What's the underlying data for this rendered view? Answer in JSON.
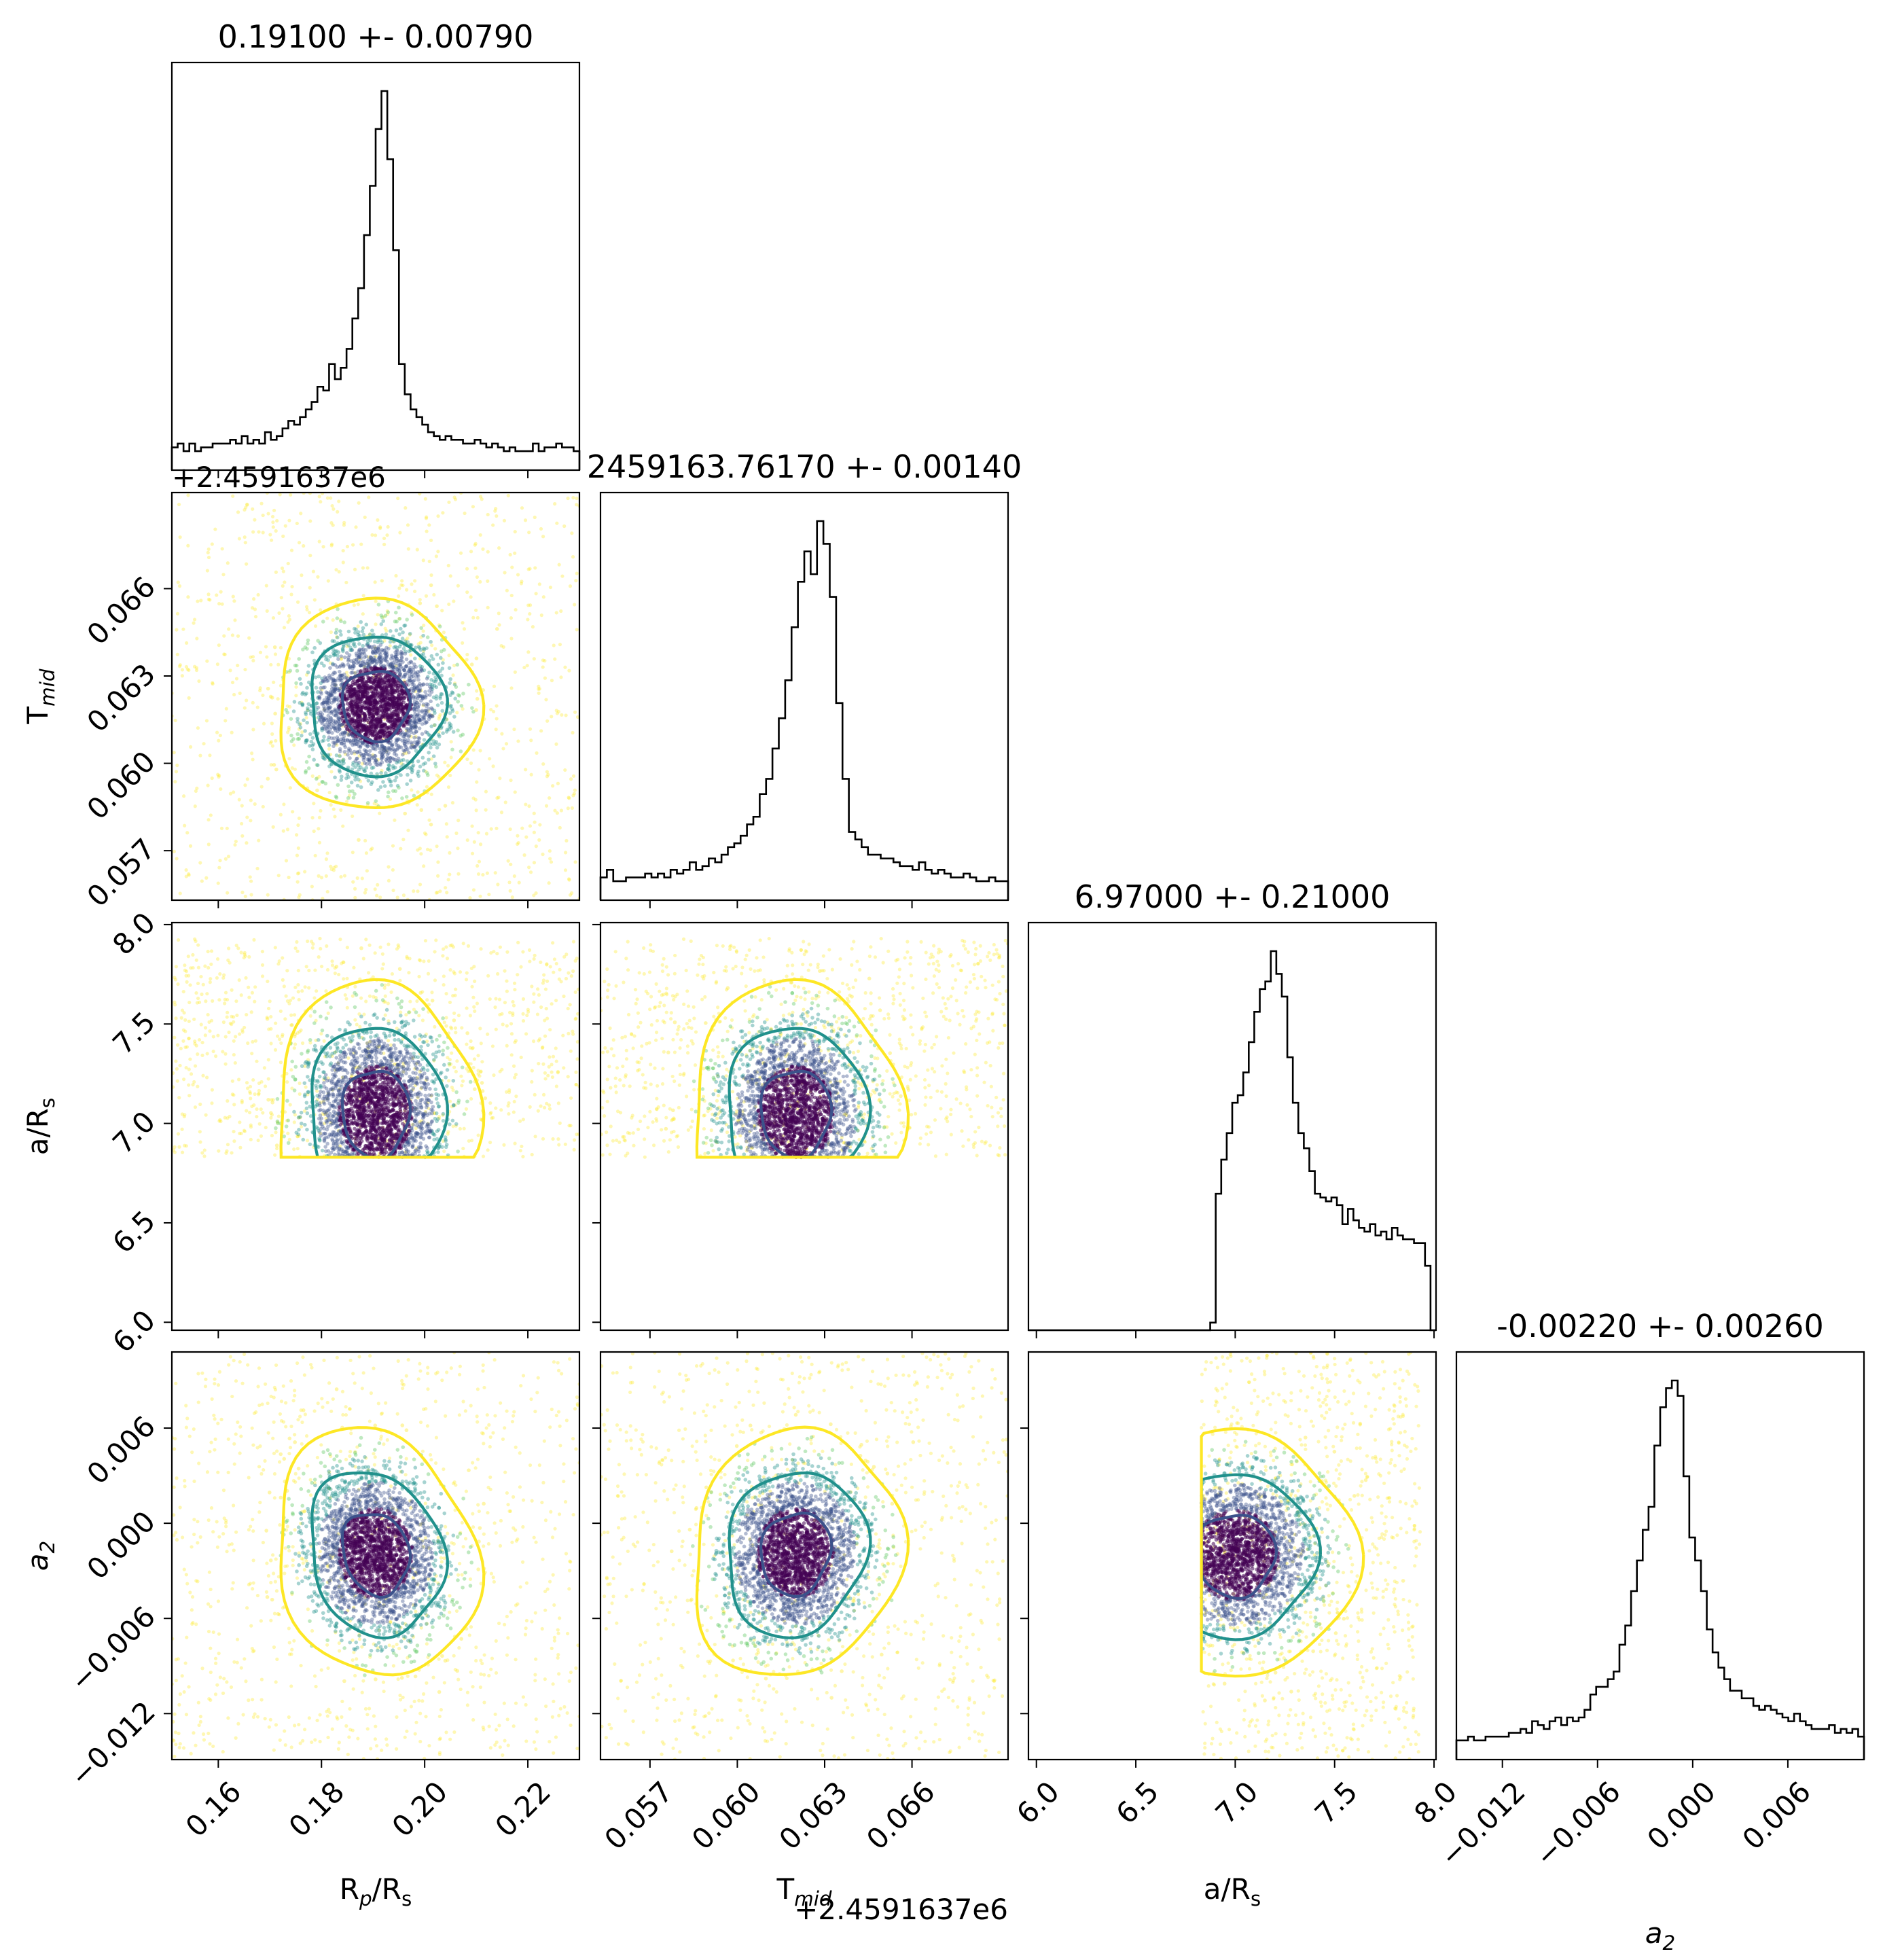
{
  "chart_data": {
    "type": "corner",
    "parameters": [
      {
        "id": "rprs",
        "title": "0.19100 +- 0.00790",
        "label": "R_p/R_s",
        "label_base": "R",
        "label_sub": "p",
        "label_tail": "/R",
        "label_tail_sub": "s",
        "lim": [
          0.151,
          0.23
        ],
        "ticks": [
          0.16,
          0.18,
          0.2,
          0.22
        ],
        "tick_labels": [
          "0.16",
          "0.18",
          "0.20",
          "0.22"
        ],
        "offset_text": ""
      },
      {
        "id": "tmid",
        "title": "2459163.76170 +- 0.00140",
        "label": "T_mid",
        "label_base": "T",
        "label_sub": "mid",
        "label_tail": "",
        "label_tail_sub": "",
        "lim": [
          0.0553,
          0.0693
        ],
        "ticks": [
          0.057,
          0.06,
          0.063,
          0.066
        ],
        "tick_labels": [
          "0.057",
          "0.060",
          "0.063",
          "0.066"
        ],
        "offset_text": "+2.4591637e6"
      },
      {
        "id": "ars",
        "title": "6.97000 +- 0.21000",
        "label": "a/R_s",
        "label_base": "a/R",
        "label_sub": "s",
        "label_tail": "",
        "label_tail_sub": "",
        "lim": [
          5.96,
          8.01
        ],
        "ticks": [
          6.0,
          6.5,
          7.0,
          7.5,
          8.0
        ],
        "tick_labels": [
          "6.0",
          "6.5",
          "7.0",
          "7.5",
          "8.0"
        ],
        "offset_text": ""
      },
      {
        "id": "a2",
        "title": "-0.00220 +- 0.00260",
        "label": "a_2",
        "label_base": "a",
        "label_sub": "2",
        "label_tail": "",
        "label_tail_sub": "",
        "lim": [
          -0.0149,
          0.0108
        ],
        "ticks": [
          -0.012,
          -0.006,
          0.0,
          0.006
        ],
        "tick_labels": [
          "−0.012",
          "−0.006",
          "0.000",
          "0.006"
        ],
        "offset_text": ""
      }
    ],
    "histograms": [
      {
        "param": "rprs",
        "bins": [
          0.151,
          0.23
        ],
        "counts": [
          6,
          7,
          5,
          7,
          5,
          6,
          6,
          7,
          7,
          7,
          8,
          7,
          9,
          7,
          8,
          7,
          10,
          8,
          9,
          11,
          13,
          12,
          14,
          16,
          18,
          22,
          21,
          28,
          24,
          27,
          32,
          40,
          48,
          62,
          75,
          90,
          100,
          82,
          58,
          28,
          20,
          16,
          14,
          12,
          10,
          9,
          8,
          9,
          8,
          8,
          7,
          7,
          8,
          7,
          6,
          7,
          6,
          5,
          6,
          5,
          5,
          5,
          7,
          5,
          6,
          6,
          7,
          6,
          6,
          5
        ]
      },
      {
        "param": "tmid",
        "bins": [
          0.0553,
          0.0693
        ],
        "counts": [
          6,
          8,
          5,
          5,
          6,
          6,
          6,
          7,
          6,
          7,
          6,
          8,
          7,
          8,
          10,
          8,
          9,
          11,
          10,
          12,
          14,
          15,
          17,
          20,
          22,
          28,
          32,
          40,
          48,
          58,
          72,
          84,
          92,
          86,
          100,
          94,
          80,
          52,
          32,
          18,
          16,
          14,
          12,
          12,
          11,
          11,
          10,
          9,
          9,
          8,
          10,
          8,
          7,
          8,
          7,
          6,
          6,
          7,
          6,
          5,
          5,
          6,
          5,
          5
        ]
      },
      {
        "param": "ars",
        "bins": [
          5.96,
          8.01
        ],
        "counts": [
          0,
          0,
          0,
          0,
          0,
          0,
          0,
          0,
          0,
          0,
          0,
          0,
          0,
          0,
          0,
          0,
          0,
          0,
          0,
          0,
          0,
          0,
          0,
          0,
          0,
          0,
          0,
          0,
          0,
          0,
          0,
          0,
          0,
          2,
          36,
          45,
          52,
          60,
          62,
          68,
          76,
          84,
          90,
          92,
          100,
          94,
          88,
          72,
          60,
          52,
          48,
          42,
          36,
          35,
          34,
          35,
          33,
          28,
          32,
          29,
          27,
          26,
          28,
          25,
          26,
          24,
          27,
          25,
          24,
          24,
          23,
          23,
          17,
          0
        ]
      },
      {
        "param": "a2",
        "bins": [
          -0.0149,
          0.0108
        ],
        "counts": [
          5,
          5,
          6,
          5,
          5,
          6,
          6,
          6,
          6,
          7,
          7,
          8,
          7,
          10,
          9,
          8,
          10,
          11,
          9,
          11,
          10,
          11,
          13,
          17,
          19,
          19,
          21,
          23,
          30,
          35,
          44,
          52,
          60,
          66,
          82,
          92,
          97,
          99,
          95,
          74,
          58,
          52,
          44,
          34,
          28,
          24,
          21,
          18,
          18,
          16,
          16,
          14,
          13,
          14,
          13,
          12,
          11,
          10,
          12,
          10,
          9,
          8,
          8,
          8,
          9,
          7,
          8,
          7,
          8,
          6
        ]
      }
    ],
    "pairs": [
      {
        "x": "rprs",
        "y": "tmid",
        "center": [
          0.1905,
          0.062
        ],
        "sd": [
          0.0065,
          0.0012
        ],
        "corr": 0.0
      },
      {
        "x": "rprs",
        "y": "ars",
        "center": [
          0.1905,
          7.05
        ],
        "sd": [
          0.0065,
          0.22
        ],
        "corr": 0.0
      },
      {
        "x": "rprs",
        "y": "a2",
        "center": [
          0.1905,
          -0.0019
        ],
        "sd": [
          0.0065,
          0.0026
        ],
        "corr": -0.15
      },
      {
        "x": "tmid",
        "y": "ars",
        "center": [
          0.062,
          7.05
        ],
        "sd": [
          0.0012,
          0.22
        ],
        "corr": 0.0
      },
      {
        "x": "tmid",
        "y": "a2",
        "center": [
          0.062,
          -0.0019
        ],
        "sd": [
          0.0012,
          0.0026
        ],
        "corr": 0.1
      },
      {
        "x": "ars",
        "y": "a2",
        "center": [
          7.0,
          -0.002
        ],
        "sd": [
          0.2,
          0.0026
        ],
        "corr": 0.0
      }
    ],
    "contour_levels": [
      "1-sigma",
      "2-sigma",
      "3-sigma"
    ],
    "colors": {
      "sigma1": "#3b528b",
      "sigma2": "#21918c",
      "sigma3": "#fde725",
      "density_core": "#440154",
      "hist": "#000000"
    }
  }
}
